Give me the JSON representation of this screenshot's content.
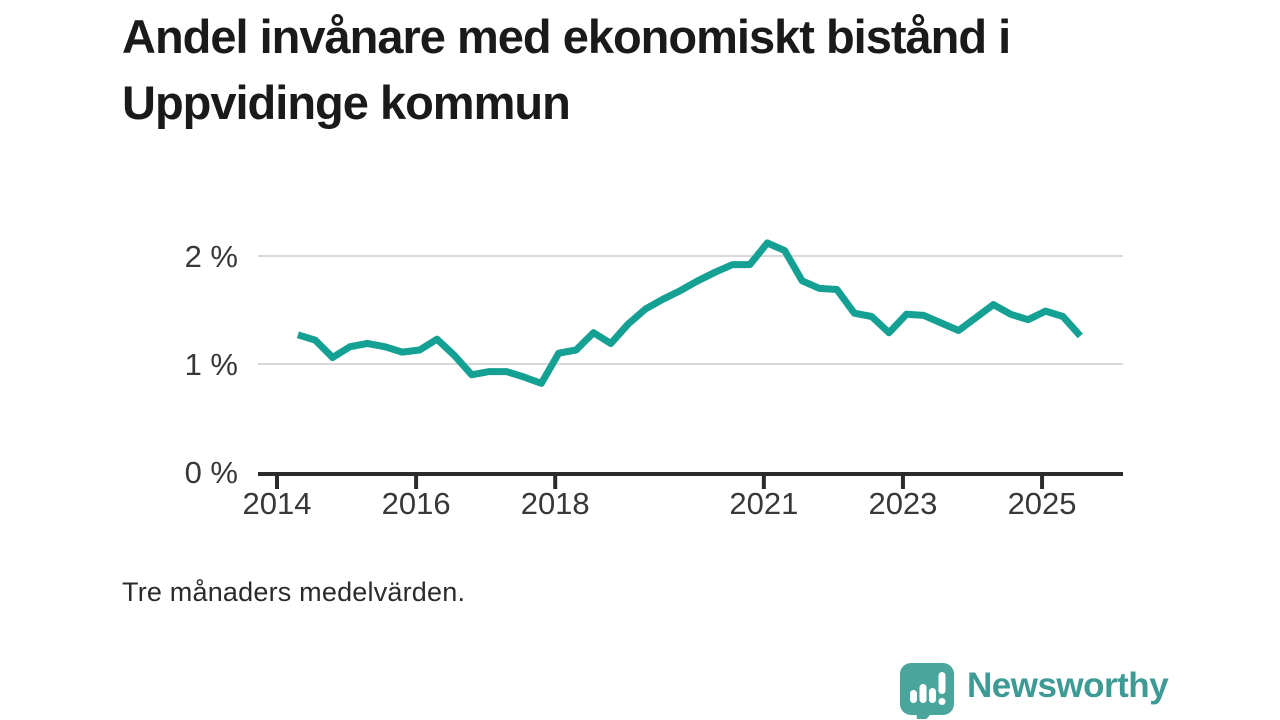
{
  "page": {
    "background": "#ffffff"
  },
  "header": {
    "title": "Andel invånare med ekonomiskt bistånd i Uppvidinge kommun"
  },
  "footnote": "Tre månaders medelvärden.",
  "branding": {
    "name": "Newsworthy",
    "logo_icon": "newsworthy-speech-bubble-bar-chart-icon",
    "logo_color": "#4aa59d",
    "wordmark_color": "#3e9a94"
  },
  "colors": {
    "line": "#14a194",
    "grid": "#d9d9d9",
    "axis": "#2b2b2b",
    "tick_label": "#383838",
    "title_text": "#1a1a1a"
  },
  "chart_data": {
    "type": "line",
    "title": "Andel invånare med ekonomiskt bistånd i Uppvidinge kommun",
    "subtitle": "Tre månaders medelvärden.",
    "xlabel": "",
    "ylabel": "",
    "x_unit": "year",
    "y_unit": "%",
    "xlim": [
      2013.7,
      2026.2
    ],
    "ylim": [
      0,
      2.25
    ],
    "grid": "horizontal-only",
    "legend_position": "none",
    "line_color": "#14a194",
    "yticks": [
      {
        "value": 0,
        "label": "0 %"
      },
      {
        "value": 1,
        "label": "1 %"
      },
      {
        "value": 2,
        "label": "2 %"
      }
    ],
    "xticks": [
      {
        "value": 2014,
        "label": "2014"
      },
      {
        "value": 2016,
        "label": "2016"
      },
      {
        "value": 2018,
        "label": "2018"
      },
      {
        "value": 2021,
        "label": "2021"
      },
      {
        "value": 2023,
        "label": "2023"
      },
      {
        "value": 2025,
        "label": "2025"
      }
    ],
    "series": [
      {
        "name": "Andel invånare med ekonomiskt bistånd",
        "x_start_year": 2014.3,
        "x_step_years": 0.25,
        "values": [
          1.27,
          1.22,
          1.06,
          1.16,
          1.19,
          1.16,
          1.11,
          1.13,
          1.23,
          1.08,
          0.9,
          0.93,
          0.93,
          0.88,
          0.82,
          1.1,
          1.13,
          1.29,
          1.19,
          1.37,
          1.51,
          1.6,
          1.68,
          1.77,
          1.85,
          1.92,
          1.92,
          2.12,
          2.05,
          1.77,
          1.7,
          1.69,
          1.47,
          1.44,
          1.29,
          1.46,
          1.45,
          1.38,
          1.31,
          1.43,
          1.55,
          1.46,
          1.41,
          1.49,
          1.44,
          1.26
        ]
      }
    ]
  }
}
